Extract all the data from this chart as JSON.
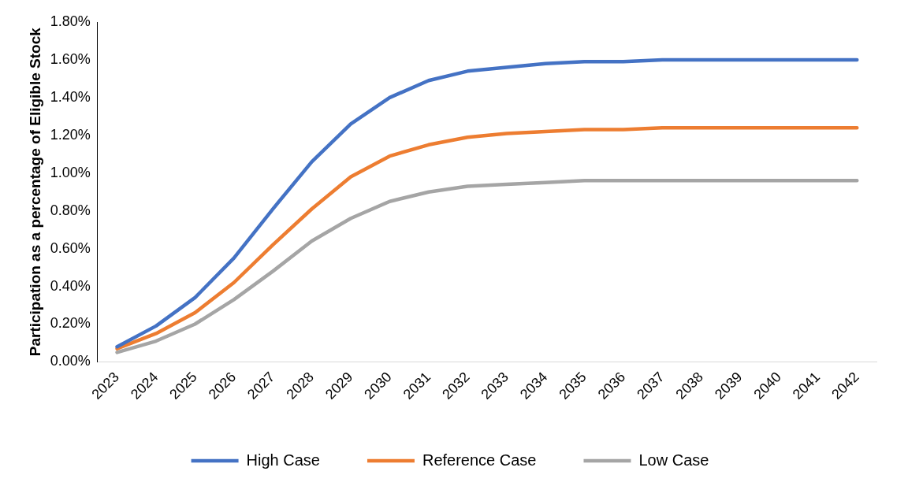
{
  "chart_data": {
    "type": "line",
    "ylabel": "Participation as a percentage of Eligible Stock",
    "categories": [
      "2023",
      "2024",
      "2025",
      "2026",
      "2027",
      "2028",
      "2029",
      "2030",
      "2031",
      "2032",
      "2033",
      "2034",
      "2035",
      "2036",
      "2037",
      "2038",
      "2039",
      "2040",
      "2041",
      "2042"
    ],
    "series": [
      {
        "name": "High Case",
        "color": "#4472c4",
        "values": [
          0.08,
          0.19,
          0.34,
          0.55,
          0.81,
          1.06,
          1.26,
          1.4,
          1.49,
          1.54,
          1.56,
          1.58,
          1.59,
          1.59,
          1.6,
          1.6,
          1.6,
          1.6,
          1.6,
          1.6
        ]
      },
      {
        "name": "Reference Case",
        "color": "#ed7d31",
        "values": [
          0.07,
          0.15,
          0.26,
          0.42,
          0.62,
          0.81,
          0.98,
          1.09,
          1.15,
          1.19,
          1.21,
          1.22,
          1.23,
          1.23,
          1.24,
          1.24,
          1.24,
          1.24,
          1.24,
          1.24
        ]
      },
      {
        "name": "Low Case",
        "color": "#a5a5a5",
        "values": [
          0.05,
          0.11,
          0.2,
          0.33,
          0.48,
          0.64,
          0.76,
          0.85,
          0.9,
          0.93,
          0.94,
          0.95,
          0.96,
          0.96,
          0.96,
          0.96,
          0.96,
          0.96,
          0.96,
          0.96
        ]
      }
    ],
    "ylim": [
      0,
      1.8
    ],
    "yticks": [
      {
        "value": 0,
        "label": "0.00%"
      },
      {
        "value": 0.2,
        "label": "0.20%"
      },
      {
        "value": 0.4,
        "label": "0.40%"
      },
      {
        "value": 0.6,
        "label": "0.60%"
      },
      {
        "value": 0.8,
        "label": "0.80%"
      },
      {
        "value": 1.0,
        "label": "1.00%"
      },
      {
        "value": 1.2,
        "label": "1.20%"
      },
      {
        "value": 1.4,
        "label": "1.40%"
      },
      {
        "value": 1.6,
        "label": "1.60%"
      },
      {
        "value": 1.8,
        "label": "1.80%"
      }
    ],
    "grid": false,
    "legend": "bottom",
    "marker": "none",
    "line_style": "solid"
  }
}
